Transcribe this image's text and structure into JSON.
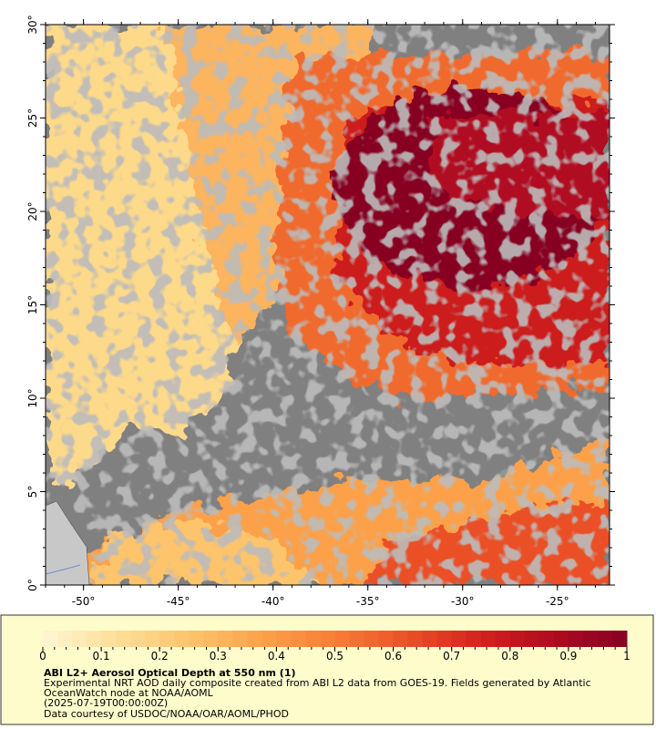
{
  "map": {
    "xlim": [
      -52,
      -22.25
    ],
    "ylim": [
      0,
      30
    ],
    "xticks": [
      {
        "value": -50,
        "label": "-50°"
      },
      {
        "value": -45,
        "label": "-45°"
      },
      {
        "value": -40,
        "label": "-40°"
      },
      {
        "value": -35,
        "label": "-35°"
      },
      {
        "value": -30,
        "label": "-30°"
      },
      {
        "value": -25,
        "label": "-25°"
      }
    ],
    "yticks": [
      {
        "value": 0,
        "label": "0°"
      },
      {
        "value": 5,
        "label": "5°"
      },
      {
        "value": 10,
        "label": "10°"
      },
      {
        "value": 15,
        "label": "15°"
      },
      {
        "value": 20,
        "label": "20°"
      },
      {
        "value": 25,
        "label": "25°"
      },
      {
        "value": 30,
        "label": "30°"
      }
    ]
  },
  "colorbar": {
    "lim": [
      0,
      1
    ],
    "ticks": [
      0,
      0.1,
      0.2,
      0.3,
      0.4,
      0.5,
      0.6,
      0.7,
      0.8,
      0.9,
      1
    ],
    "colors": [
      "#fff6d5",
      "#fedf99",
      "#fdc46c",
      "#fca14a",
      "#f87d36",
      "#eb5028",
      "#d3221e",
      "#b10a20",
      "#870023"
    ]
  },
  "caption": {
    "title": "ABI L2+ Aerosol Optical Depth at 550 nm (1)",
    "lines": [
      "Experimental NRT AOD daily composite created from ABI L2 data from GOES-19. Fields generated by Atlantic",
      "OceanWatch node at NOAA/AOML",
      "(2025-07-19T00:00:00Z)",
      "Data courtesy of USDOC/NOAA/OAR/AOML/PHOD"
    ]
  }
}
